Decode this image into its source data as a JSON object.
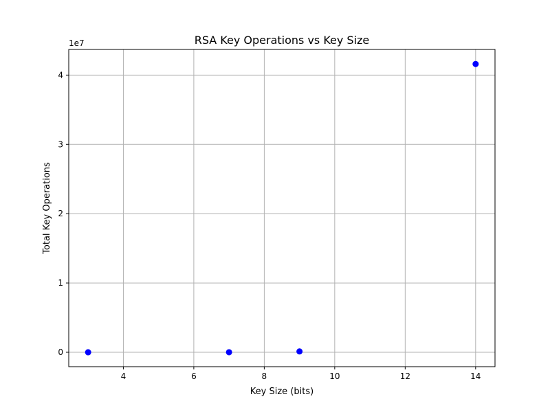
{
  "chart_data": {
    "type": "scatter",
    "title": "RSA Key Operations vs Key Size",
    "xlabel": "Key Size (bits)",
    "ylabel": "Total Key Operations",
    "y_offset_label": "1e7",
    "y_scale_factor": 10000000,
    "xlim": [
      2.45,
      14.55
    ],
    "ylim": [
      -2080000,
      43700000
    ],
    "x_ticks": [
      4,
      6,
      8,
      10,
      12,
      14
    ],
    "x_tick_labels": [
      "4",
      "6",
      "8",
      "10",
      "12",
      "14"
    ],
    "y_ticks": [
      0,
      10000000,
      20000000,
      30000000,
      40000000
    ],
    "y_tick_labels": [
      "0",
      "1",
      "2",
      "3",
      "4"
    ],
    "grid": true,
    "marker_color": "#0000ff",
    "series": [
      {
        "x": [
          3,
          7,
          9,
          14
        ],
        "y": [
          6,
          2400,
          120000,
          41600000
        ]
      }
    ]
  }
}
